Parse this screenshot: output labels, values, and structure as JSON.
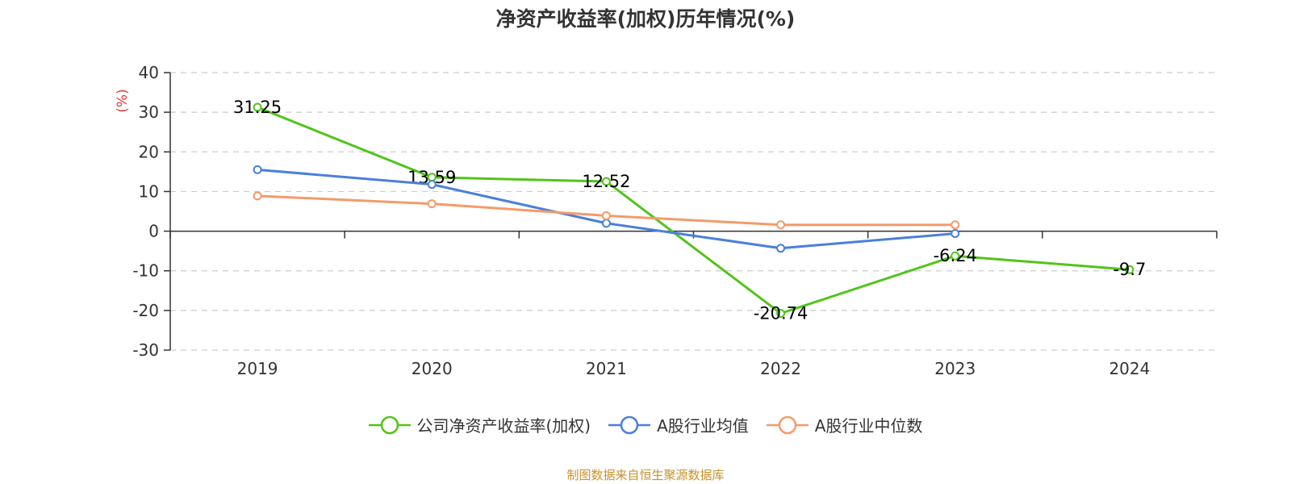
{
  "chart_data": {
    "type": "line",
    "title": "净资产收益率(加权)历年情况(%)",
    "ylabel": "(%)",
    "xlabel": "",
    "categories": [
      "2019",
      "2020",
      "2021",
      "2022",
      "2023",
      "2024"
    ],
    "ylim": [
      -30,
      40
    ],
    "yticks": [
      "40",
      "30",
      "20",
      "10",
      "0",
      "-10",
      "-20",
      "-30"
    ],
    "grid": true,
    "legend_position": "bottom-center",
    "series": [
      {
        "name": "公司净资产收益率(加权)",
        "color": "#52c41a",
        "values": [
          31.25,
          13.59,
          12.52,
          -20.74,
          -6.24,
          -9.7
        ],
        "labels": [
          "31.25",
          "13.59",
          "12.52",
          "-20.74",
          "-6.24",
          "-9.7"
        ]
      },
      {
        "name": "A股行业均值",
        "color": "#4a7fdc",
        "values": [
          15.5,
          11.8,
          2.0,
          -4.3,
          -0.6,
          null
        ]
      },
      {
        "name": "A股行业中位数",
        "color": "#f59a6a",
        "values": [
          8.9,
          6.9,
          3.9,
          1.6,
          1.6,
          null
        ]
      }
    ]
  },
  "footer": {
    "text": "制图数据来自恒生聚源数据库",
    "color": "#c8912a"
  },
  "axis_colors": {
    "ylabel": "#e53935",
    "axis": "#333333",
    "grid": "#cccccc",
    "tick_text": "#333333"
  }
}
